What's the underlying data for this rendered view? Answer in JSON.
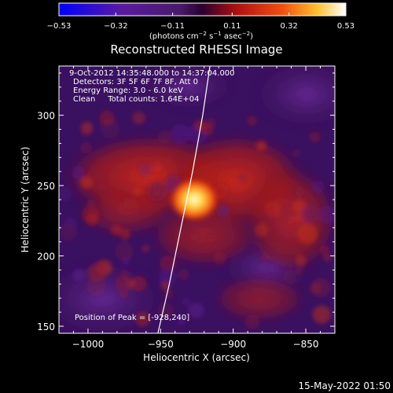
{
  "chart_data": {
    "type": "heatmap",
    "title": "Reconstructed RHESSI Image",
    "xlabel": "Heliocentric X (arcsec)",
    "ylabel": "Heliocentric Y (arcsec)",
    "xlim": [
      -1020,
      -830
    ],
    "ylim": [
      145,
      335
    ],
    "x_ticks": [
      -1000,
      -950,
      -900,
      -850
    ],
    "y_ticks": [
      150,
      200,
      250,
      300
    ],
    "x_tick_labels": [
      "−1000",
      "−950",
      "−900",
      "−850"
    ],
    "y_tick_labels": [
      "150",
      "200",
      "250",
      "300"
    ],
    "colorbar": {
      "min": -0.53,
      "max": 0.53,
      "ticks": [
        -0.53,
        -0.32,
        -0.11,
        0.11,
        0.32,
        0.53
      ],
      "tick_labels": [
        "−0.53",
        "−0.32",
        "−0.11",
        "0.11",
        "0.32",
        "0.53"
      ],
      "unit_parts": [
        "(photons cm",
        "−2",
        " s",
        "−1",
        " asec",
        "−2",
        ")"
      ]
    },
    "info_lines": [
      "9-Oct-2012 14:35:48.000 to 14:37:04.000",
      "Detectors: 3F 5F 6F 7F 8F, Att 0",
      "Energy Range: 3.0 - 6.0 keV",
      "Clean     Total counts: 1.64E+04"
    ],
    "peak": {
      "label": "Position of Peak = [-928,240]",
      "x": -928,
      "y": 240
    },
    "limb_curve": [
      [
        -953,
        140
      ],
      [
        -944,
        180
      ],
      [
        -936,
        220
      ],
      [
        -928,
        260
      ],
      [
        -921,
        300
      ],
      [
        -916,
        335
      ],
      [
        -913,
        340
      ]
    ],
    "image_colors": {
      "negative": "#5a1a8a",
      "zero": "#3a0f5a",
      "positive_low": "#b2201a",
      "positive_mid": "#f04010",
      "peak": "#ffffc8"
    }
  },
  "footer": {
    "timestamp": "15-May-2022 01:50"
  }
}
